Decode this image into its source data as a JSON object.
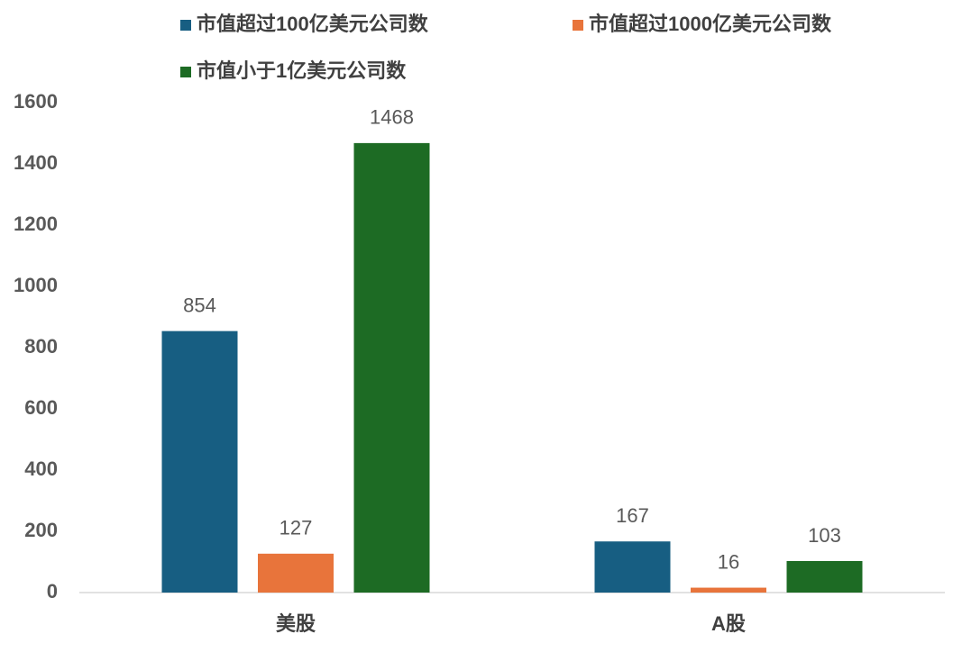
{
  "chart_data": {
    "type": "bar",
    "categories": [
      "美股",
      "A股"
    ],
    "series": [
      {
        "name": "市值超过100亿美元公司数",
        "color": "#175e82",
        "values": [
          854,
          167
        ]
      },
      {
        "name": "市值超过1000亿美元公司数",
        "color": "#e8743b",
        "values": [
          127,
          16
        ]
      },
      {
        "name": "市值小于1亿美元公司数",
        "color": "#1d6b24",
        "values": [
          1468,
          103
        ]
      }
    ],
    "ylim": [
      0,
      1600
    ],
    "yticks": [
      0,
      200,
      400,
      600,
      800,
      1000,
      1200,
      1400,
      1600
    ],
    "grid": false,
    "legend": "top"
  }
}
